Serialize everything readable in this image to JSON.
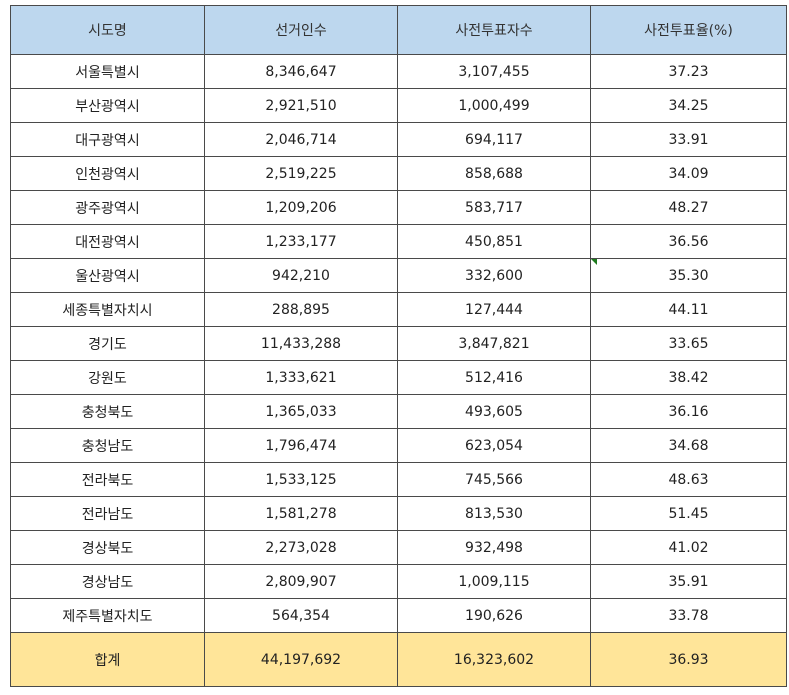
{
  "table": {
    "headers": [
      "시도명",
      "선거인수",
      "사전투표자수",
      "사전투표율(%)"
    ],
    "rows": [
      [
        "서울특별시",
        "8,346,647",
        "3,107,455",
        "37.23"
      ],
      [
        "부산광역시",
        "2,921,510",
        "1,000,499",
        "34.25"
      ],
      [
        "대구광역시",
        "2,046,714",
        "694,117",
        "33.91"
      ],
      [
        "인천광역시",
        "2,519,225",
        "858,688",
        "34.09"
      ],
      [
        "광주광역시",
        "1,209,206",
        "583,717",
        "48.27"
      ],
      [
        "대전광역시",
        "1,233,177",
        "450,851",
        "36.56"
      ],
      [
        "울산광역시",
        "942,210",
        "332,600",
        "35.30"
      ],
      [
        "세종특별자치시",
        "288,895",
        "127,444",
        "44.11"
      ],
      [
        "경기도",
        "11,433,288",
        "3,847,821",
        "33.65"
      ],
      [
        "강원도",
        "1,333,621",
        "512,416",
        "38.42"
      ],
      [
        "충청북도",
        "1,365,033",
        "493,605",
        "36.16"
      ],
      [
        "충청남도",
        "1,796,474",
        "623,054",
        "34.68"
      ],
      [
        "전라북도",
        "1,533,125",
        "745,566",
        "48.63"
      ],
      [
        "전라남도",
        "1,581,278",
        "813,530",
        "51.45"
      ],
      [
        "경상북도",
        "2,273,028",
        "932,498",
        "41.02"
      ],
      [
        "경상남도",
        "2,809,907",
        "1,009,115",
        "35.91"
      ],
      [
        "제주특별자치도",
        "564,354",
        "190,626",
        "33.78"
      ]
    ],
    "total": [
      "합계",
      "44,197,692",
      "16,323,602",
      "36.93"
    ]
  },
  "colors": {
    "header_bg": "#bdd7ee",
    "total_bg": "#ffe599",
    "border": "#4a4a4a",
    "cell_marker": "#1e7a1e"
  }
}
